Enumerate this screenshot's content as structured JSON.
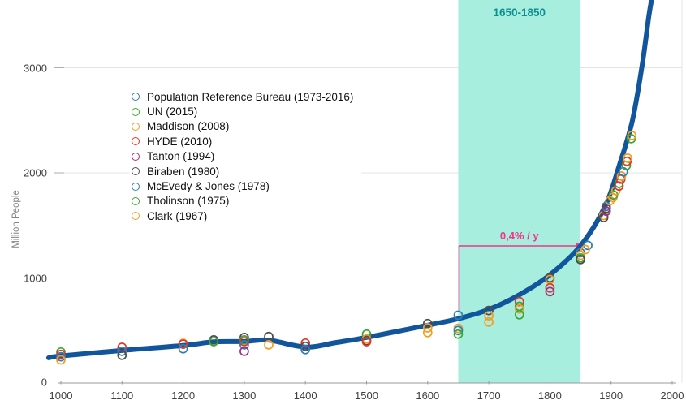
{
  "colors": {
    "blue": "#2d7dbb",
    "green": "#3aa832",
    "orange": "#f59c21",
    "red": "#e6352b",
    "purple": "#a62c7e",
    "gray": "#4d4d4d",
    "curve": "#11559c",
    "band_fill": "#a7eede",
    "band_text": "#0d9091",
    "annotation_pink": "#f2348b",
    "gridline": "#e4e4e4",
    "axis": "#9a9a9a",
    "tick_text": "#3f3f3f",
    "axis_title_text": "#828282"
  },
  "chart_data": {
    "type": "scatter",
    "title": "",
    "ylabel": "Million People",
    "xlabel": "",
    "xlim": [
      1000,
      2000
    ],
    "ylim": [
      0,
      3650
    ],
    "x_ticks": [
      1000,
      1100,
      1200,
      1300,
      1400,
      1500,
      1600,
      1700,
      1800,
      1900,
      2000
    ],
    "y_ticks": [
      0,
      1000,
      2000,
      3000
    ],
    "grid": "horizontal-light",
    "highlight_band": {
      "from_year": 1650,
      "to_year": 1850,
      "label": "1650-1850"
    },
    "annotation": {
      "label": "0,4% / y",
      "from_year": 1650,
      "to_year": 1850,
      "at_million": 1305,
      "drop_to_million": 680
    },
    "legend": [
      {
        "name": "Population Reference Bureau (1973-2016)",
        "color": "blue"
      },
      {
        "name": "UN (2015)",
        "color": "green"
      },
      {
        "name": "Maddison (2008)",
        "color": "orange"
      },
      {
        "name": "HYDE (2010)",
        "color": "red"
      },
      {
        "name": "Tanton (1994)",
        "color": "purple"
      },
      {
        "name": "Biraben (1980)",
        "color": "gray"
      },
      {
        "name": "McEvedy & Jones (1978)",
        "color": "blue"
      },
      {
        "name": "Tholinson (1975)",
        "color": "green"
      },
      {
        "name": "Clark (1967)",
        "color": "orange"
      }
    ],
    "curve": [
      [
        980,
        240
      ],
      [
        1000,
        258
      ],
      [
        1100,
        310
      ],
      [
        1200,
        357
      ],
      [
        1250,
        392
      ],
      [
        1300,
        395
      ],
      [
        1340,
        408
      ],
      [
        1400,
        342
      ],
      [
        1450,
        385
      ],
      [
        1500,
        434
      ],
      [
        1600,
        550
      ],
      [
        1650,
        612
      ],
      [
        1700,
        700
      ],
      [
        1750,
        840
      ],
      [
        1800,
        1030
      ],
      [
        1850,
        1305
      ],
      [
        1890,
        1680
      ],
      [
        1915,
        2100
      ],
      [
        1935,
        2500
      ],
      [
        1951,
        3030
      ],
      [
        1962,
        3500
      ],
      [
        1968,
        3700
      ]
    ],
    "points": [
      [
        1000,
        295,
        "green"
      ],
      [
        1000,
        272,
        "red"
      ],
      [
        1000,
        250,
        "blue"
      ],
      [
        1000,
        220,
        "orange"
      ],
      [
        1100,
        340,
        "red"
      ],
      [
        1100,
        302,
        "blue"
      ],
      [
        1100,
        264,
        "gray"
      ],
      [
        1200,
        378,
        "orange"
      ],
      [
        1200,
        370,
        "red"
      ],
      [
        1200,
        326,
        "blue"
      ],
      [
        1250,
        410,
        "gray"
      ],
      [
        1250,
        394,
        "green"
      ],
      [
        1300,
        434,
        "gray"
      ],
      [
        1300,
        410,
        "green"
      ],
      [
        1300,
        394,
        "red"
      ],
      [
        1300,
        364,
        "blue"
      ],
      [
        1300,
        302,
        "purple"
      ],
      [
        1340,
        442,
        "gray"
      ],
      [
        1340,
        364,
        "orange"
      ],
      [
        1400,
        380,
        "red"
      ],
      [
        1400,
        349,
        "gray"
      ],
      [
        1400,
        318,
        "blue"
      ],
      [
        1500,
        465,
        "green"
      ],
      [
        1500,
        419,
        "orange"
      ],
      [
        1500,
        403,
        "gray"
      ],
      [
        1500,
        394,
        "red"
      ],
      [
        1600,
        566,
        "gray"
      ],
      [
        1600,
        525,
        "orange"
      ],
      [
        1600,
        480,
        "orange"
      ],
      [
        1650,
        645,
        "blue"
      ],
      [
        1650,
        520,
        "orange"
      ],
      [
        1650,
        500,
        "blue"
      ],
      [
        1650,
        465,
        "green"
      ],
      [
        1700,
        690,
        "gray"
      ],
      [
        1700,
        640,
        "orange"
      ],
      [
        1700,
        580,
        "orange"
      ],
      [
        1750,
        775,
        "red"
      ],
      [
        1750,
        730,
        "green"
      ],
      [
        1750,
        705,
        "orange"
      ],
      [
        1750,
        650,
        "green"
      ],
      [
        1800,
        1000,
        "gray"
      ],
      [
        1800,
        985,
        "orange"
      ],
      [
        1800,
        905,
        "red"
      ],
      [
        1800,
        870,
        "purple"
      ],
      [
        1850,
        1240,
        "blue"
      ],
      [
        1850,
        1215,
        "orange"
      ],
      [
        1850,
        1190,
        "green"
      ],
      [
        1850,
        1175,
        "gray"
      ],
      [
        1862,
        1310,
        "blue"
      ],
      [
        1858,
        1270,
        "orange"
      ],
      [
        1888,
        1595,
        "orange"
      ],
      [
        1888,
        1575,
        "gray"
      ],
      [
        1892,
        1680,
        "blue"
      ],
      [
        1892,
        1660,
        "gray"
      ],
      [
        1892,
        1635,
        "purple"
      ],
      [
        1898,
        1735,
        "orange"
      ],
      [
        1903,
        1765,
        "orange"
      ],
      [
        1904,
        1790,
        "green"
      ],
      [
        1908,
        1830,
        "orange"
      ],
      [
        1913,
        1900,
        "green"
      ],
      [
        1913,
        1875,
        "red"
      ],
      [
        1916,
        1940,
        "red"
      ],
      [
        1917,
        1970,
        "orange"
      ],
      [
        1920,
        2010,
        "blue"
      ],
      [
        1925,
        2070,
        "green"
      ],
      [
        1926,
        2110,
        "red"
      ],
      [
        1927,
        2140,
        "orange"
      ],
      [
        1933,
        2325,
        "green"
      ],
      [
        1934,
        2355,
        "orange"
      ]
    ]
  }
}
